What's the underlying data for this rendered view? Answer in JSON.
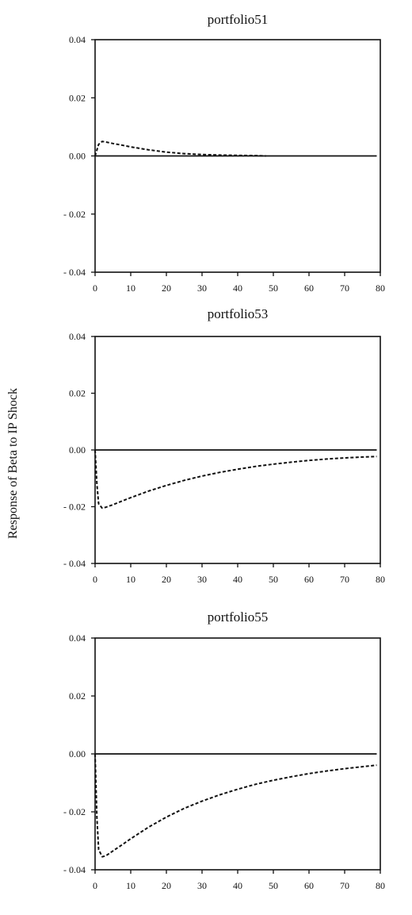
{
  "figure": {
    "ylabel": "Response of Beta to IP Shock"
  },
  "chart_data": [
    {
      "type": "line",
      "title": "portfolio51",
      "xlabel": "",
      "ylabel": "Response of Beta to IP Shock",
      "xlim": [
        0,
        80
      ],
      "ylim": [
        -0.04,
        0.04
      ],
      "xticks": [
        "0",
        "10",
        "20",
        "30",
        "40",
        "50",
        "60",
        "70",
        "80"
      ],
      "yticks": [
        "0.04",
        "0.02",
        "0.00",
        "- 0.02",
        "- 0.04"
      ],
      "grid": false,
      "legend": "none",
      "series": [
        {
          "style": "dashed",
          "x": [
            0,
            1,
            2,
            3,
            5,
            8,
            10,
            15,
            20,
            25,
            30,
            35,
            40,
            45,
            48
          ],
          "y": [
            0.0,
            0.004,
            0.005,
            0.0048,
            0.0043,
            0.0036,
            0.0031,
            0.0021,
            0.0013,
            0.0008,
            0.0005,
            0.0003,
            0.0002,
            0.0001,
            0.0
          ]
        },
        {
          "style": "solid",
          "x": [
            0,
            79
          ],
          "y": [
            0.0,
            0.0
          ]
        }
      ]
    },
    {
      "type": "line",
      "title": "portfolio53",
      "xlabel": "",
      "ylabel": "Response of Beta to IP Shock",
      "xlim": [
        0,
        80
      ],
      "ylim": [
        -0.04,
        0.04
      ],
      "xticks": [
        "0",
        "10",
        "20",
        "30",
        "40",
        "50",
        "60",
        "70",
        "80"
      ],
      "yticks": [
        "0.04",
        "0.02",
        "0.00",
        "- 0.02",
        "- 0.04"
      ],
      "grid": false,
      "legend": "none",
      "series": [
        {
          "style": "dashed",
          "x": [
            0,
            0.5,
            1,
            2,
            3,
            5,
            8,
            10,
            15,
            20,
            25,
            30,
            35,
            40,
            45,
            50,
            55,
            60,
            65,
            70,
            75,
            79
          ],
          "y": [
            0.0,
            -0.012,
            -0.019,
            -0.0205,
            -0.0202,
            -0.0193,
            -0.0178,
            -0.0168,
            -0.0145,
            -0.0125,
            -0.0107,
            -0.0092,
            -0.0079,
            -0.0068,
            -0.0058,
            -0.005,
            -0.0043,
            -0.0037,
            -0.0032,
            -0.0028,
            -0.0025,
            -0.0023
          ]
        },
        {
          "style": "solid",
          "x": [
            0,
            79
          ],
          "y": [
            0.0,
            0.0
          ]
        }
      ]
    },
    {
      "type": "line",
      "title": "portfolio55",
      "xlabel": "",
      "ylabel": "Response of Beta to IP Shock",
      "xlim": [
        0,
        80
      ],
      "ylim": [
        -0.04,
        0.04
      ],
      "xticks": [
        "0",
        "10",
        "20",
        "30",
        "40",
        "50",
        "60",
        "70",
        "80"
      ],
      "yticks": [
        "0.04",
        "0.02",
        "0.00",
        "- 0.02",
        "- 0.04"
      ],
      "grid": false,
      "legend": "none",
      "series": [
        {
          "style": "dashed",
          "x": [
            0,
            0.5,
            1,
            2,
            3,
            5,
            8,
            10,
            15,
            20,
            25,
            30,
            35,
            40,
            45,
            50,
            55,
            60,
            65,
            70,
            75,
            79
          ],
          "y": [
            0.0,
            -0.022,
            -0.033,
            -0.0355,
            -0.0352,
            -0.0335,
            -0.031,
            -0.0293,
            -0.0253,
            -0.0218,
            -0.0188,
            -0.0163,
            -0.0141,
            -0.0122,
            -0.0105,
            -0.0091,
            -0.0079,
            -0.0068,
            -0.0059,
            -0.0051,
            -0.0044,
            -0.0039
          ]
        },
        {
          "style": "solid",
          "x": [
            0,
            79
          ],
          "y": [
            0.0,
            0.0
          ]
        }
      ]
    }
  ]
}
